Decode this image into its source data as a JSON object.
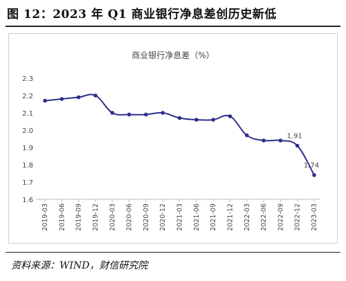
{
  "figure": {
    "title": "图 12：2023 年 Q1 商业银行净息差创历史新低",
    "source": "资料来源：WIND，财信研究院"
  },
  "chart_data": {
    "type": "line",
    "title": "商业银行净息差（%）",
    "xlabel": "",
    "ylabel": "",
    "ylim": [
      1.6,
      2.3
    ],
    "yticks": [
      "1.6",
      "1.7",
      "1.8",
      "1.9",
      "2.0",
      "2.1",
      "2.2",
      "2.3"
    ],
    "grid": false,
    "categories": [
      "2019-03",
      "2019-06",
      "2019-09",
      "2019-12",
      "2020-03",
      "2020-06",
      "2020-09",
      "2020-12",
      "2021-03",
      "2021-06",
      "2021-09",
      "2021-12",
      "2022-03",
      "2022-06",
      "2022-09",
      "2022-12",
      "2023-03"
    ],
    "series": [
      {
        "values": [
          2.17,
          2.18,
          2.19,
          2.2,
          2.1,
          2.09,
          2.09,
          2.1,
          2.07,
          2.06,
          2.06,
          2.08,
          1.97,
          1.94,
          1.94,
          1.91,
          1.74
        ]
      }
    ],
    "annotations": [
      {
        "index": 15,
        "label": "1.91"
      },
      {
        "index": 16,
        "label": "1.74"
      }
    ],
    "color": "#2e2e8c"
  }
}
